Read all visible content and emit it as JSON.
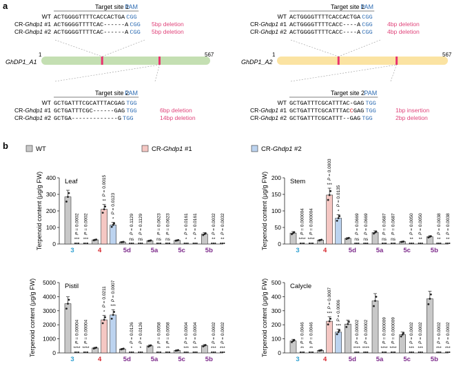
{
  "figure": {
    "panel_a_label": "a",
    "panel_b_label": "b",
    "colors": {
      "pam": "#2f6db3",
      "deletion": "#e0457b",
      "gene_a1": "#c4dfb2",
      "gene_a2": "#fbe3a2",
      "site_mark": "#e8336f",
      "wt": "#c8c8c8",
      "cr1": "#f5c7c3",
      "cr2": "#bcd3ef",
      "label_blue": "#2c9fd0",
      "label_red": "#d7262d",
      "label_purple": "#7d2b8b"
    }
  },
  "panel_a": {
    "genes": [
      {
        "name": "GhDP1_A1",
        "start_label": "1",
        "end_label": "567",
        "site1": {
          "title": "Target site 1",
          "pam_label": "PAM",
          "rows": [
            {
              "label_pre": "WT",
              "label_ital": "",
              "label_post": "",
              "seq": "ACTGGGGTTTTCACCACTGA",
              "seq_red": "",
              "seq_tail": "",
              "pam": "CGG",
              "note": ""
            },
            {
              "label_pre": "CR-",
              "label_ital": "Ghdp1",
              "label_post": " #1",
              "seq": "ACTGGGGTTTTCAC------A",
              "seq_red": "",
              "seq_tail": "",
              "pam": "CGG",
              "note": "5bp deletion"
            },
            {
              "label_pre": "CR-",
              "label_ital": "Ghdp1",
              "label_post": " #2",
              "seq": "ACTGGGGTTTTCAC------A",
              "seq_red": "",
              "seq_tail": "",
              "pam": "CGG",
              "note": "5bp deletion"
            }
          ]
        },
        "site2": {
          "title": "Target site 2",
          "pam_label": "PAM",
          "rows": [
            {
              "label_pre": "WT",
              "label_ital": "",
              "label_post": "",
              "seq": "GCTGATTTCGCATTTACGAG",
              "seq_red": "",
              "seq_tail": "",
              "pam": "TGG",
              "note": ""
            },
            {
              "label_pre": "CR-",
              "label_ital": "Ghdp1",
              "label_post": " #1",
              "seq": "GCTGATTTCGC------GAG",
              "seq_red": "",
              "seq_tail": "",
              "pam": "TGG",
              "note": "6bp deletion"
            },
            {
              "label_pre": "CR-",
              "label_ital": "Ghdp1",
              "label_post": " #2",
              "seq": "GCTGA-------------G",
              "seq_red": "",
              "seq_tail": "",
              "pam": "TGG",
              "note": "14bp deletion"
            }
          ]
        }
      },
      {
        "name": "GhDP1_A2",
        "start_label": "1",
        "end_label": "567",
        "site1": {
          "title": "Target site 1",
          "pam_label": "PAM",
          "rows": [
            {
              "label_pre": "WT",
              "label_ital": "",
              "label_post": "",
              "seq": "ACTGGGGTTTTCACCACTGA",
              "seq_red": "",
              "seq_tail": "",
              "pam": "CGG",
              "note": ""
            },
            {
              "label_pre": "CR-",
              "label_ital": "Ghdp1",
              "label_post": " #1",
              "seq": "ACTGGGGTTTTCACC----A",
              "seq_red": "",
              "seq_tail": "",
              "pam": "CGG",
              "note": "4bp deletion"
            },
            {
              "label_pre": "CR-",
              "label_ital": "Ghdp1",
              "label_post": " #2",
              "seq": "ACTGGGGTTTTCACC----A",
              "seq_red": "",
              "seq_tail": "",
              "pam": "CGG",
              "note": "4bp deletion"
            }
          ]
        },
        "site2": {
          "title": "Target site 2",
          "pam_label": "PAM",
          "rows": [
            {
              "label_pre": "WT",
              "label_ital": "",
              "label_post": "",
              "seq": "GCTGATTTCGCATTTAC-GAG",
              "seq_red": "",
              "seq_tail": "",
              "pam": "TGG",
              "note": ""
            },
            {
              "label_pre": "CR-",
              "label_ital": "Ghdp1",
              "label_post": " #1",
              "seq": "GCTGATTTCGCATTTAC",
              "seq_red": "C",
              "seq_tail": "GAG",
              "pam": "TGG",
              "note": "1bp insertion"
            },
            {
              "label_pre": "CR-",
              "label_ital": "Ghdp1",
              "label_post": " #2",
              "seq": "GCTGATTTCGCATTT--GAG",
              "seq_red": "",
              "seq_tail": "",
              "pam": "TGG",
              "note": "2bp deletion"
            }
          ]
        }
      }
    ]
  },
  "legend": {
    "wt": "WT",
    "cr1_pre": "CR-",
    "cr1_ital": "Ghdp1",
    "cr1_post": " #1",
    "cr2_pre": "CR-",
    "cr2_ital": "Ghdp1",
    "cr2_post": " #2"
  },
  "chart_data": [
    {
      "type": "bar",
      "title": "Leaf",
      "ylabel": "Terpenoid content (μg/g FW)",
      "ylim": [
        0,
        400
      ],
      "yticks": [
        0,
        100,
        200,
        300,
        400
      ],
      "categories": [
        "3",
        "4",
        "5d",
        "5a",
        "5c",
        "5b"
      ],
      "series": [
        {
          "name": "WT",
          "values": [
            285,
            25,
            12,
            20,
            22,
            60
          ]
        },
        {
          "name": "CR-Ghdp1 #1",
          "values": [
            0,
            210,
            0,
            0,
            0,
            0
          ]
        },
        {
          "name": "CR-Ghdp1 #2",
          "values": [
            0,
            115,
            0,
            0,
            0,
            0
          ]
        }
      ],
      "p_values": [
        [
          "P = 0.0002",
          "P = 0.0002"
        ],
        [
          "P = 0.0015",
          "P = 0.0123"
        ],
        [
          "P = 0.1129",
          "P = 0.1129"
        ],
        [
          "P = 0.0623",
          "P = 0.0623"
        ],
        [
          "P = 0.0161",
          "P = 0.0161"
        ],
        [
          "P = 0.0032",
          "P = 0.0032"
        ]
      ],
      "sig": [
        [
          "***",
          "***"
        ],
        [
          "**",
          "*"
        ],
        [
          "ns",
          "ns"
        ],
        [
          "ns",
          "ns"
        ],
        [
          "*",
          "*"
        ],
        [
          "**",
          "**"
        ]
      ]
    },
    {
      "type": "bar",
      "title": "Stem",
      "ylabel": "Terpenoid content (μg/g FW)",
      "ylim": [
        0,
        200
      ],
      "yticks": [
        0,
        50,
        100,
        150,
        200
      ],
      "categories": [
        "3",
        "4",
        "5d",
        "5a",
        "5c",
        "5b"
      ],
      "series": [
        {
          "name": "WT",
          "values": [
            33,
            12,
            17,
            35,
            7,
            22
          ]
        },
        {
          "name": "CR-Ghdp1 #1",
          "values": [
            0,
            148,
            0,
            0,
            0,
            0
          ]
        },
        {
          "name": "CR-Ghdp1 #2",
          "values": [
            0,
            78,
            0,
            0,
            0,
            0
          ]
        }
      ],
      "p_values": [
        [
          "P = 0.000004",
          "P = 0.000004"
        ],
        [
          "P = 0.0003",
          "P = 0.0135"
        ],
        [
          "P = 0.0669",
          "P = 0.0669"
        ],
        [
          "P = 0.0687",
          "P = 0.0687"
        ],
        [
          "P = 0.0050",
          "P = 0.0050"
        ],
        [
          "P = 0.0038",
          "P = 0.0038"
        ]
      ],
      "sig": [
        [
          "****",
          "****"
        ],
        [
          "***",
          "*"
        ],
        [
          "ns",
          "ns"
        ],
        [
          "ns",
          "ns"
        ],
        [
          "**",
          "**"
        ],
        [
          "**",
          "**"
        ]
      ]
    },
    {
      "type": "bar",
      "title": "Pistil",
      "ylabel": "Terpenoid content (μg/g FW)",
      "ylim": [
        0,
        5000
      ],
      "yticks": [
        0,
        1000,
        2000,
        3000,
        4000,
        5000
      ],
      "categories": [
        "3",
        "4",
        "5d",
        "5a",
        "5c",
        "5b"
      ],
      "series": [
        {
          "name": "WT",
          "values": [
            3500,
            350,
            280,
            500,
            180,
            520
          ]
        },
        {
          "name": "CR-Ghdp1 #1",
          "values": [
            0,
            2350,
            0,
            0,
            0,
            0
          ]
        },
        {
          "name": "CR-Ghdp1 #2",
          "values": [
            0,
            2700,
            0,
            0,
            0,
            0
          ]
        }
      ],
      "p_values": [
        [
          "P = 0.00004",
          "P = 0.00004"
        ],
        [
          "P = 0.0211",
          "P = 0.0007"
        ],
        [
          "P = 0.0126",
          "P = 0.0126"
        ],
        [
          "P = 0.0058",
          "P = 0.0058"
        ],
        [
          "P = 0.0004",
          "P = 0.0004"
        ],
        [
          "P = 0.0002",
          "P = 0.0002"
        ]
      ],
      "sig": [
        [
          "****",
          "****"
        ],
        [
          "*",
          "***"
        ],
        [
          "*",
          "*"
        ],
        [
          "**",
          "**"
        ],
        [
          "***",
          "***"
        ],
        [
          "***",
          "***"
        ]
      ]
    },
    {
      "type": "bar",
      "title": "Calycle",
      "ylabel": "Terpenoid content (μg/g FW)",
      "ylim": [
        0,
        500
      ],
      "yticks": [
        0,
        100,
        200,
        300,
        400,
        500
      ],
      "categories": [
        "3",
        "4",
        "5d",
        "5a",
        "5c",
        "5b"
      ],
      "series": [
        {
          "name": "WT",
          "values": [
            85,
            18,
            205,
            370,
            130,
            385
          ]
        },
        {
          "name": "CR-Ghdp1 #1",
          "values": [
            0,
            225,
            0,
            0,
            0,
            0
          ]
        },
        {
          "name": "CR-Ghdp1 #2",
          "values": [
            0,
            148,
            0,
            0,
            0,
            0
          ]
        }
      ],
      "p_values": [
        [
          "P = 0.0046",
          "P = 0.0046"
        ],
        [
          "P = 0.0007",
          "P = 0.0006"
        ],
        [
          "P = 0.00002",
          "P = 0.00002"
        ],
        [
          "P = 0.000009",
          "P = 0.000009"
        ],
        [
          "P = 0.0002",
          "P = 0.0002"
        ],
        [
          "P = 0.0002",
          "P = 0.0002"
        ]
      ],
      "sig": [
        [
          "**",
          "**"
        ],
        [
          "***",
          "***"
        ],
        [
          "****",
          "****"
        ],
        [
          "****",
          "****"
        ],
        [
          "***",
          "***"
        ],
        [
          "***",
          "***"
        ]
      ]
    }
  ]
}
